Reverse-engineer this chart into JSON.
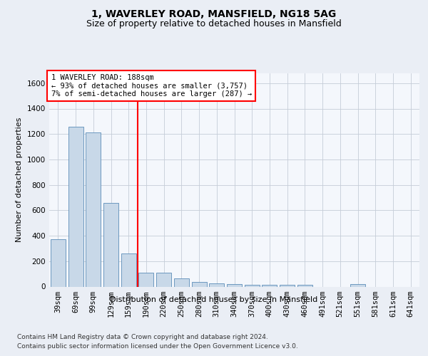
{
  "title1": "1, WAVERLEY ROAD, MANSFIELD, NG18 5AG",
  "title2": "Size of property relative to detached houses in Mansfield",
  "xlabel": "Distribution of detached houses by size in Mansfield",
  "ylabel": "Number of detached properties",
  "categories": [
    "39sqm",
    "69sqm",
    "99sqm",
    "129sqm",
    "159sqm",
    "190sqm",
    "220sqm",
    "250sqm",
    "280sqm",
    "310sqm",
    "340sqm",
    "370sqm",
    "400sqm",
    "430sqm",
    "460sqm",
    "491sqm",
    "521sqm",
    "551sqm",
    "581sqm",
    "611sqm",
    "641sqm"
  ],
  "values": [
    370,
    1260,
    1210,
    660,
    260,
    110,
    110,
    65,
    35,
    25,
    18,
    12,
    12,
    12,
    12,
    0,
    0,
    20,
    0,
    0,
    0
  ],
  "bar_color": "#c8d8e8",
  "bar_edge_color": "#5b8db8",
  "vline_index": 5,
  "annotation_text": "1 WAVERLEY ROAD: 188sqm\n← 93% of detached houses are smaller (3,757)\n7% of semi-detached houses are larger (287) →",
  "annotation_box_color": "white",
  "annotation_border_color": "red",
  "vline_color": "red",
  "ylim": [
    0,
    1680
  ],
  "yticks": [
    0,
    200,
    400,
    600,
    800,
    1000,
    1200,
    1400,
    1600
  ],
  "footer1": "Contains HM Land Registry data © Crown copyright and database right 2024.",
  "footer2": "Contains public sector information licensed under the Open Government Licence v3.0.",
  "bg_color": "#eaeef5",
  "plot_bg_color": "#f4f7fc",
  "grid_color": "#c5cdd8",
  "title1_fontsize": 10,
  "title2_fontsize": 9,
  "axis_label_fontsize": 8,
  "tick_fontsize": 7.5,
  "annotation_fontsize": 7.5,
  "footer_fontsize": 6.5,
  "xlabel_fontsize": 8
}
